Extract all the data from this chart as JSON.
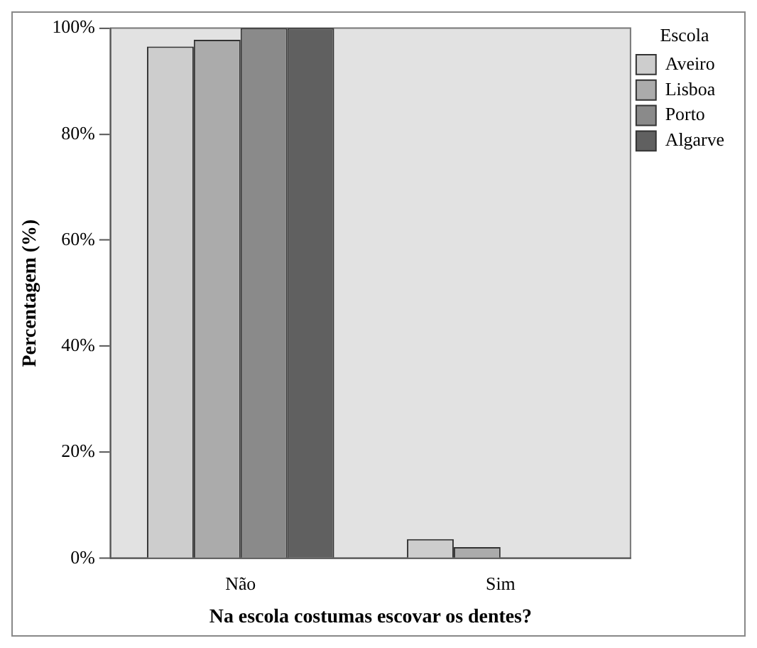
{
  "chart_data": {
    "type": "bar",
    "xlabel": "Na escola costumas escovar os dentes?",
    "ylabel": "Percentagem (%)",
    "legend_title": "Escola",
    "legend": "top right",
    "grid": false,
    "categories": [
      "Não",
      "Sim"
    ],
    "series": [
      {
        "name": "Aveiro",
        "color": "#cdcdcd",
        "values": [
          96.5,
          3.6
        ]
      },
      {
        "name": "Lisboa",
        "color": "#ababab",
        "values": [
          97.8,
          2.1
        ]
      },
      {
        "name": "Porto",
        "color": "#8a8a8a",
        "values": [
          100,
          0
        ]
      },
      {
        "name": "Algarve",
        "color": "#606060",
        "values": [
          100,
          0
        ]
      }
    ],
    "ylim": [
      0,
      100
    ],
    "yticks": [
      {
        "value": 0,
        "label": "0%"
      },
      {
        "value": 20,
        "label": "20%"
      },
      {
        "value": 40,
        "label": "40%"
      },
      {
        "value": 60,
        "label": "60%"
      },
      {
        "value": 80,
        "label": "80%"
      },
      {
        "value": 100,
        "label": "100%"
      }
    ]
  }
}
